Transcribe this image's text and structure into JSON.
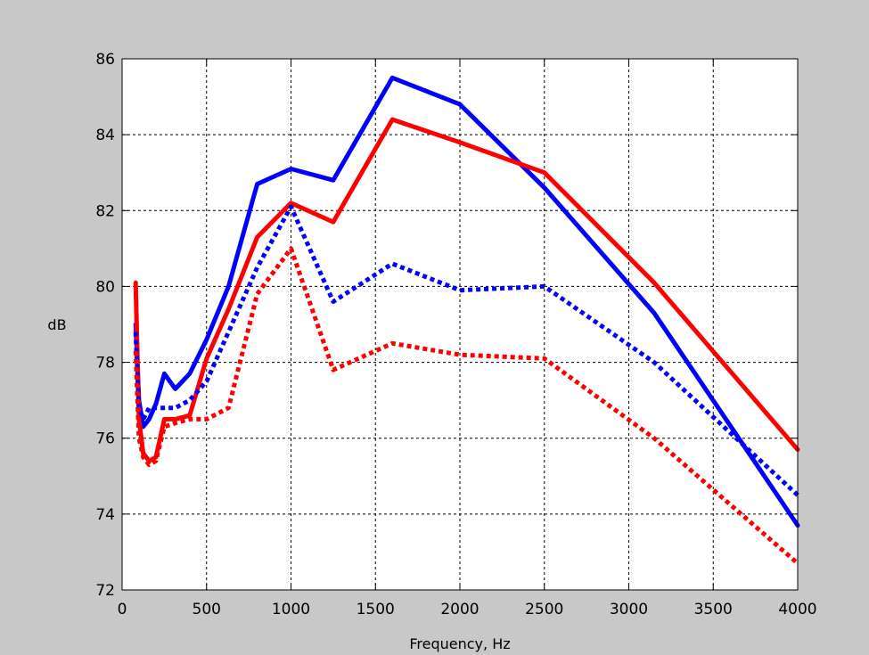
{
  "figure": {
    "background": "#c8c8c8",
    "axes_background": "#ffffff"
  },
  "chart_data": {
    "type": "line",
    "title": "",
    "xlabel": "Frequency, Hz",
    "ylabel": "dB",
    "xlim": [
      0,
      4000
    ],
    "ylim": [
      72,
      86
    ],
    "xticks": [
      0,
      500,
      1000,
      1500,
      2000,
      2500,
      3000,
      3500,
      4000
    ],
    "yticks": [
      72,
      74,
      76,
      78,
      80,
      82,
      84,
      86
    ],
    "grid": true,
    "grid_style": "dashed",
    "legend": "none",
    "series": [
      {
        "color": "#0000ff",
        "style": "solid",
        "x": [
          80,
          100,
          125,
          160,
          200,
          250,
          315,
          400,
          500,
          630,
          800,
          1000,
          1250,
          1600,
          2000,
          2500,
          3150,
          4000
        ],
        "y": [
          79.0,
          77.0,
          76.3,
          76.5,
          76.9,
          77.7,
          77.3,
          77.7,
          78.6,
          80.0,
          82.7,
          83.1,
          82.8,
          85.5,
          84.8,
          82.6,
          79.3,
          73.7
        ]
      },
      {
        "color": "#ff0000",
        "style": "solid",
        "x": [
          80,
          100,
          125,
          160,
          200,
          250,
          315,
          400,
          500,
          630,
          800,
          1000,
          1250,
          1600,
          2000,
          2500,
          3150,
          4000
        ],
        "y": [
          80.1,
          76.5,
          75.6,
          75.4,
          75.5,
          76.5,
          76.5,
          76.6,
          78.1,
          79.4,
          81.3,
          82.2,
          81.7,
          84.4,
          83.8,
          83.0,
          80.1,
          75.7
        ]
      },
      {
        "color": "#0000ff",
        "style": "dotted",
        "x": [
          80,
          100,
          125,
          160,
          200,
          250,
          315,
          400,
          500,
          630,
          800,
          1000,
          1250,
          1600,
          2000,
          2500,
          3150,
          4000
        ],
        "y": [
          78.8,
          76.8,
          76.5,
          76.8,
          76.8,
          76.8,
          76.8,
          77.0,
          77.5,
          78.8,
          80.5,
          82.1,
          79.6,
          80.6,
          79.9,
          80.0,
          78.0,
          74.5
        ]
      },
      {
        "color": "#ff0000",
        "style": "dotted",
        "x": [
          80,
          100,
          125,
          160,
          200,
          250,
          315,
          400,
          500,
          630,
          800,
          1000,
          1250,
          1600,
          2000,
          2500,
          3150,
          4000
        ],
        "y": [
          78.3,
          76.0,
          75.5,
          75.3,
          75.4,
          76.3,
          76.4,
          76.5,
          76.5,
          76.8,
          79.8,
          81.0,
          77.8,
          78.5,
          78.2,
          78.1,
          76.0,
          72.7
        ]
      }
    ]
  }
}
